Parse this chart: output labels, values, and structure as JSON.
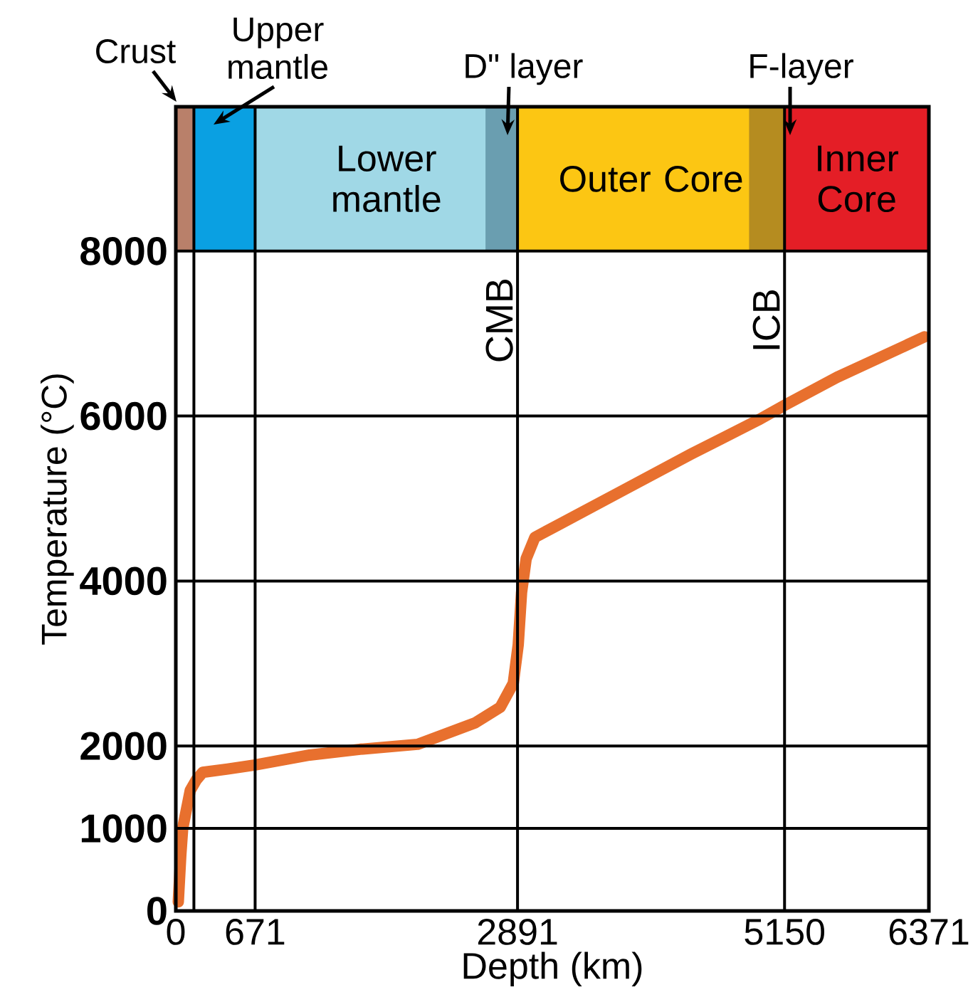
{
  "chart_data": {
    "type": "line",
    "xlabel": "Depth (km)",
    "ylabel": "Temperature (°C)",
    "xlim": [
      0,
      6371
    ],
    "ylim": [
      0,
      9750
    ],
    "xticks": [
      0,
      671,
      2891,
      5150,
      6371
    ],
    "yticks": [
      0,
      1000,
      2000,
      4000,
      6000,
      8000
    ],
    "grid": "y",
    "series": [
      {
        "color": "#e8702e",
        "x": [
          21,
          42,
          58,
          122,
          174,
          227,
          438,
          671,
          1133,
          1559,
          2045,
          2532,
          2745,
          2855,
          2897,
          2925,
          2964,
          3038,
          3235,
          3798,
          4361,
          4925,
          5150,
          5594,
          6334
        ],
        "values": [
          110,
          670,
          1000,
          1460,
          1590,
          1680,
          1720,
          1770,
          1890,
          1960,
          2020,
          2280,
          2470,
          2760,
          3230,
          3860,
          4270,
          4530,
          4680,
          5110,
          5540,
          5950,
          6130,
          6470,
          6960
        ]
      }
    ],
    "bands": [
      {
        "axis": "x",
        "from": 0,
        "to": 153,
        "color": "#b9806a"
      },
      {
        "axis": "x",
        "from": 153,
        "to": 671,
        "color": "#0aa0e2"
      },
      {
        "axis": "x",
        "from": 671,
        "to": 2891,
        "label": "Lower mantle",
        "color": "#a0d8e6"
      },
      {
        "axis": "x",
        "from": 2620,
        "to": 2891,
        "color": "#6a9eb0"
      },
      {
        "axis": "x",
        "from": 2891,
        "to": 5150,
        "label": "Outer Core",
        "color": "#fcc613"
      },
      {
        "axis": "x",
        "from": 4850,
        "to": 5150,
        "color": "#b58c20"
      },
      {
        "axis": "x",
        "from": 5150,
        "to": 6371,
        "label": "Inner Core",
        "color": "#e41e26"
      }
    ],
    "ref_lines": [
      {
        "axis": "x",
        "value": 153
      },
      {
        "axis": "x",
        "value": 671
      },
      {
        "axis": "x",
        "value": 2891,
        "label": "CMB"
      },
      {
        "axis": "x",
        "value": 5150,
        "label": "ICB"
      }
    ],
    "annotations": [
      "Crust",
      "Upper mantle",
      "D\" layer",
      "F-layer"
    ]
  }
}
